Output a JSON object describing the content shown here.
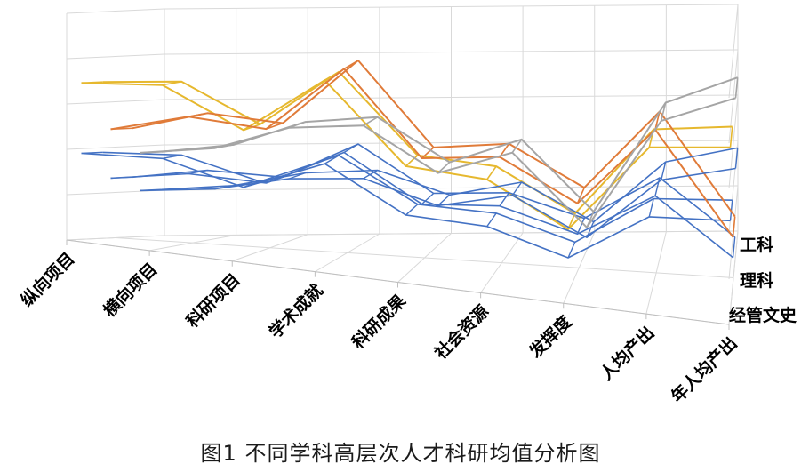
{
  "figure": {
    "caption": "图1  不同学科高层次人才科研均值分析图"
  },
  "chart_data": {
    "type": "line",
    "subtype": "3d-line-ribbon",
    "categories": [
      "纵向项目",
      "横向项目",
      "科研项目",
      "学术成就",
      "科研成果",
      "社会资源",
      "发挥度",
      "人均产出",
      "年人均产出"
    ],
    "series": [
      {
        "name": "工科",
        "color": "#E6B82E",
        "values": [
          0.69,
          0.72,
          0.56,
          0.82,
          0.48,
          0.46,
          0.28,
          0.68,
          0.72
        ]
      },
      {
        "name": "理科",
        "color": "#E07B39",
        "values": [
          0.48,
          0.56,
          0.53,
          0.82,
          0.45,
          0.48,
          0.3,
          0.65,
          0.2
        ]
      },
      {
        "name": "经管文史",
        "color": "#A5A5A5",
        "values": [
          0.37,
          0.4,
          0.5,
          0.52,
          0.32,
          0.42,
          0.1,
          0.58,
          0.69
        ]
      }
    ],
    "blue_series": {
      "color": "#4472C4"
    },
    "grid": true,
    "gridline_color": "#D9D9D9",
    "legend": "none",
    "depth_labels": [
      "工科",
      "理科",
      "经管文史"
    ]
  }
}
